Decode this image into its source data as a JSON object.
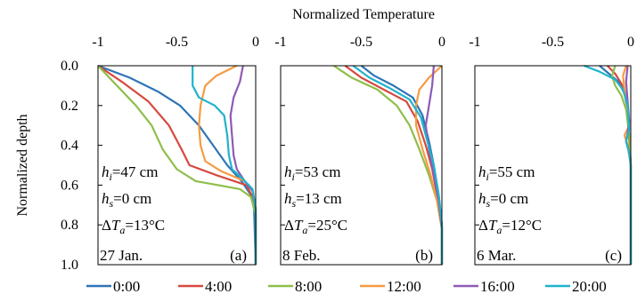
{
  "figure": {
    "top_label": "Normalized Temperature",
    "y_label": "Normalized depth"
  },
  "colors": {
    "0:00": "#2e75b6",
    "4:00": "#d6493f",
    "8:00": "#8dbf4a",
    "12:00": "#f59b42",
    "16:00": "#8e5ab5",
    "20:00": "#1fb3cc"
  },
  "legend": [
    "0:00",
    "4:00",
    "8:00",
    "12:00",
    "16:00",
    "20:00"
  ],
  "chart_data": [
    {
      "type": "line",
      "panel_label": "(a)",
      "date": "27 Jan.",
      "annotations": [
        "h_i=47 cm",
        "h_s=0 cm",
        "ΔT_a=13°C"
      ],
      "xlim": [
        -1,
        0
      ],
      "ylim": [
        0,
        1
      ],
      "y_inverted": true,
      "x_ticks": [
        "-1",
        "-0.5",
        "0"
      ],
      "y_ticks": [
        "0.0",
        "0.2",
        "0.4",
        "0.6",
        "0.8",
        "1.0"
      ],
      "series": [
        {
          "name": "0:00",
          "points": [
            [
              -1.0,
              0.0
            ],
            [
              -0.8,
              0.06
            ],
            [
              -0.62,
              0.13
            ],
            [
              -0.48,
              0.2
            ],
            [
              -0.36,
              0.3
            ],
            [
              -0.27,
              0.4
            ],
            [
              -0.18,
              0.5
            ],
            [
              -0.09,
              0.58
            ],
            [
              -0.03,
              0.65
            ],
            [
              -0.01,
              0.72
            ],
            [
              0.0,
              1.0
            ]
          ]
        },
        {
          "name": "4:00",
          "points": [
            [
              -1.0,
              0.0
            ],
            [
              -0.85,
              0.08
            ],
            [
              -0.68,
              0.18
            ],
            [
              -0.55,
              0.3
            ],
            [
              -0.47,
              0.42
            ],
            [
              -0.42,
              0.5
            ],
            [
              -0.25,
              0.55
            ],
            [
              -0.06,
              0.6
            ],
            [
              -0.02,
              0.66
            ],
            [
              0.0,
              0.75
            ],
            [
              0.0,
              1.0
            ]
          ]
        },
        {
          "name": "8:00",
          "points": [
            [
              -1.0,
              0.0
            ],
            [
              -0.88,
              0.1
            ],
            [
              -0.76,
              0.2
            ],
            [
              -0.66,
              0.3
            ],
            [
              -0.59,
              0.42
            ],
            [
              -0.5,
              0.52
            ],
            [
              -0.38,
              0.58
            ],
            [
              -0.1,
              0.62
            ],
            [
              -0.03,
              0.66
            ],
            [
              0.0,
              0.75
            ],
            [
              0.0,
              1.0
            ]
          ]
        },
        {
          "name": "12:00",
          "points": [
            [
              -0.12,
              0.0
            ],
            [
              -0.25,
              0.05
            ],
            [
              -0.32,
              0.1
            ],
            [
              -0.35,
              0.2
            ],
            [
              -0.36,
              0.3
            ],
            [
              -0.35,
              0.4
            ],
            [
              -0.32,
              0.48
            ],
            [
              -0.22,
              0.53
            ],
            [
              -0.07,
              0.58
            ],
            [
              -0.02,
              0.63
            ],
            [
              0.0,
              0.72
            ],
            [
              0.0,
              1.0
            ]
          ]
        },
        {
          "name": "16:00",
          "points": [
            [
              -0.08,
              0.0
            ],
            [
              -0.1,
              0.08
            ],
            [
              -0.14,
              0.16
            ],
            [
              -0.16,
              0.25
            ],
            [
              -0.15,
              0.35
            ],
            [
              -0.14,
              0.45
            ],
            [
              -0.12,
              0.52
            ],
            [
              -0.07,
              0.58
            ],
            [
              -0.02,
              0.63
            ],
            [
              0.0,
              0.72
            ],
            [
              0.0,
              1.0
            ]
          ]
        },
        {
          "name": "20:00",
          "points": [
            [
              -0.4,
              0.0
            ],
            [
              -0.4,
              0.1
            ],
            [
              -0.36,
              0.16
            ],
            [
              -0.26,
              0.2
            ],
            [
              -0.2,
              0.25
            ],
            [
              -0.18,
              0.35
            ],
            [
              -0.17,
              0.45
            ],
            [
              -0.15,
              0.52
            ],
            [
              -0.08,
              0.57
            ],
            [
              -0.02,
              0.62
            ],
            [
              0.0,
              0.72
            ],
            [
              0.0,
              1.0
            ]
          ]
        }
      ]
    },
    {
      "type": "line",
      "panel_label": "(b)",
      "date": "8 Feb.",
      "annotations": [
        "h_i=53 cm",
        "h_s=13 cm",
        "ΔT_a=25°C"
      ],
      "xlim": [
        -1,
        0
      ],
      "ylim": [
        0,
        1
      ],
      "y_inverted": true,
      "x_ticks": [
        "-1",
        "-0.5",
        "0"
      ],
      "y_ticks": [
        "",
        "",
        "",
        "",
        "",
        ""
      ],
      "series": [
        {
          "name": "0:00",
          "points": [
            [
              -0.5,
              0.0
            ],
            [
              -0.42,
              0.05
            ],
            [
              -0.3,
              0.1
            ],
            [
              -0.18,
              0.16
            ],
            [
              -0.12,
              0.25
            ],
            [
              -0.08,
              0.38
            ],
            [
              -0.05,
              0.5
            ],
            [
              -0.02,
              0.65
            ],
            [
              0.0,
              0.8
            ],
            [
              0.0,
              1.0
            ]
          ]
        },
        {
          "name": "4:00",
          "points": [
            [
              -0.6,
              0.0
            ],
            [
              -0.5,
              0.06
            ],
            [
              -0.36,
              0.12
            ],
            [
              -0.22,
              0.18
            ],
            [
              -0.15,
              0.28
            ],
            [
              -0.1,
              0.4
            ],
            [
              -0.06,
              0.52
            ],
            [
              -0.03,
              0.65
            ],
            [
              0.0,
              0.8
            ],
            [
              0.0,
              1.0
            ]
          ]
        },
        {
          "name": "8:00",
          "points": [
            [
              -0.67,
              0.0
            ],
            [
              -0.56,
              0.06
            ],
            [
              -0.4,
              0.12
            ],
            [
              -0.28,
              0.2
            ],
            [
              -0.2,
              0.3
            ],
            [
              -0.14,
              0.42
            ],
            [
              -0.08,
              0.55
            ],
            [
              -0.03,
              0.68
            ],
            [
              0.0,
              0.82
            ],
            [
              0.0,
              1.0
            ]
          ]
        },
        {
          "name": "12:00",
          "points": [
            [
              0.0,
              0.0
            ],
            [
              -0.08,
              0.06
            ],
            [
              -0.14,
              0.12
            ],
            [
              -0.16,
              0.2
            ],
            [
              -0.16,
              0.3
            ],
            [
              -0.12,
              0.42
            ],
            [
              -0.07,
              0.55
            ],
            [
              -0.03,
              0.68
            ],
            [
              0.0,
              0.82
            ],
            [
              0.0,
              1.0
            ]
          ]
        },
        {
          "name": "16:00",
          "points": [
            [
              -0.05,
              0.0
            ],
            [
              -0.06,
              0.1
            ],
            [
              -0.08,
              0.2
            ],
            [
              -0.1,
              0.3
            ],
            [
              -0.08,
              0.42
            ],
            [
              -0.05,
              0.55
            ],
            [
              -0.02,
              0.68
            ],
            [
              0.0,
              0.82
            ],
            [
              0.0,
              1.0
            ]
          ]
        },
        {
          "name": "20:00",
          "points": [
            [
              -0.55,
              0.0
            ],
            [
              -0.45,
              0.06
            ],
            [
              -0.33,
              0.11
            ],
            [
              -0.2,
              0.17
            ],
            [
              -0.13,
              0.26
            ],
            [
              -0.09,
              0.38
            ],
            [
              -0.05,
              0.5
            ],
            [
              -0.02,
              0.65
            ],
            [
              0.0,
              0.8
            ],
            [
              0.0,
              1.0
            ]
          ]
        }
      ]
    },
    {
      "type": "line",
      "panel_label": "(c)",
      "date": "6 Mar.",
      "annotations": [
        "h_i=55 cm",
        "h_s=0 cm",
        "ΔT_a=12°C"
      ],
      "xlim": [
        -1,
        0
      ],
      "ylim": [
        0,
        1
      ],
      "y_inverted": true,
      "x_ticks": [
        "-1",
        "-0.5",
        "0"
      ],
      "y_ticks": [
        "",
        "",
        "",
        "",
        "",
        ""
      ],
      "series": [
        {
          "name": "0:00",
          "points": [
            [
              -0.2,
              0.0
            ],
            [
              -0.14,
              0.04
            ],
            [
              -0.08,
              0.08
            ],
            [
              -0.04,
              0.14
            ],
            [
              -0.02,
              0.22
            ],
            [
              -0.01,
              0.35
            ],
            [
              0.0,
              0.5
            ],
            [
              0.0,
              1.0
            ]
          ]
        },
        {
          "name": "4:00",
          "points": [
            [
              -0.15,
              0.0
            ],
            [
              -0.1,
              0.04
            ],
            [
              -0.06,
              0.09
            ],
            [
              -0.03,
              0.15
            ],
            [
              -0.02,
              0.25
            ],
            [
              -0.01,
              0.38
            ],
            [
              0.0,
              0.5
            ],
            [
              0.0,
              1.0
            ]
          ]
        },
        {
          "name": "8:00",
          "points": [
            [
              -0.1,
              0.0
            ],
            [
              -0.12,
              0.05
            ],
            [
              -0.1,
              0.1
            ],
            [
              -0.06,
              0.15
            ],
            [
              -0.03,
              0.22
            ],
            [
              -0.01,
              0.35
            ],
            [
              0.0,
              0.5
            ],
            [
              0.0,
              1.0
            ]
          ]
        },
        {
          "name": "12:00",
          "points": [
            [
              -0.03,
              0.0
            ],
            [
              -0.05,
              0.05
            ],
            [
              -0.04,
              0.12
            ],
            [
              -0.02,
              0.22
            ],
            [
              -0.01,
              0.3
            ],
            [
              -0.04,
              0.35
            ],
            [
              -0.02,
              0.4
            ],
            [
              0.0,
              0.5
            ],
            [
              0.0,
              1.0
            ]
          ]
        },
        {
          "name": "16:00",
          "points": [
            [
              -0.02,
              0.0
            ],
            [
              -0.03,
              0.08
            ],
            [
              -0.02,
              0.18
            ],
            [
              -0.01,
              0.28
            ],
            [
              -0.02,
              0.34
            ],
            [
              -0.03,
              0.38
            ],
            [
              -0.01,
              0.44
            ],
            [
              0.0,
              0.5
            ],
            [
              0.0,
              1.0
            ]
          ]
        },
        {
          "name": "20:00",
          "points": [
            [
              -0.3,
              0.0
            ],
            [
              -0.2,
              0.03
            ],
            [
              -0.1,
              0.07
            ],
            [
              -0.05,
              0.12
            ],
            [
              -0.02,
              0.2
            ],
            [
              -0.01,
              0.32
            ],
            [
              -0.03,
              0.38
            ],
            [
              -0.01,
              0.44
            ],
            [
              0.0,
              0.5
            ],
            [
              0.0,
              1.0
            ]
          ]
        }
      ]
    }
  ]
}
